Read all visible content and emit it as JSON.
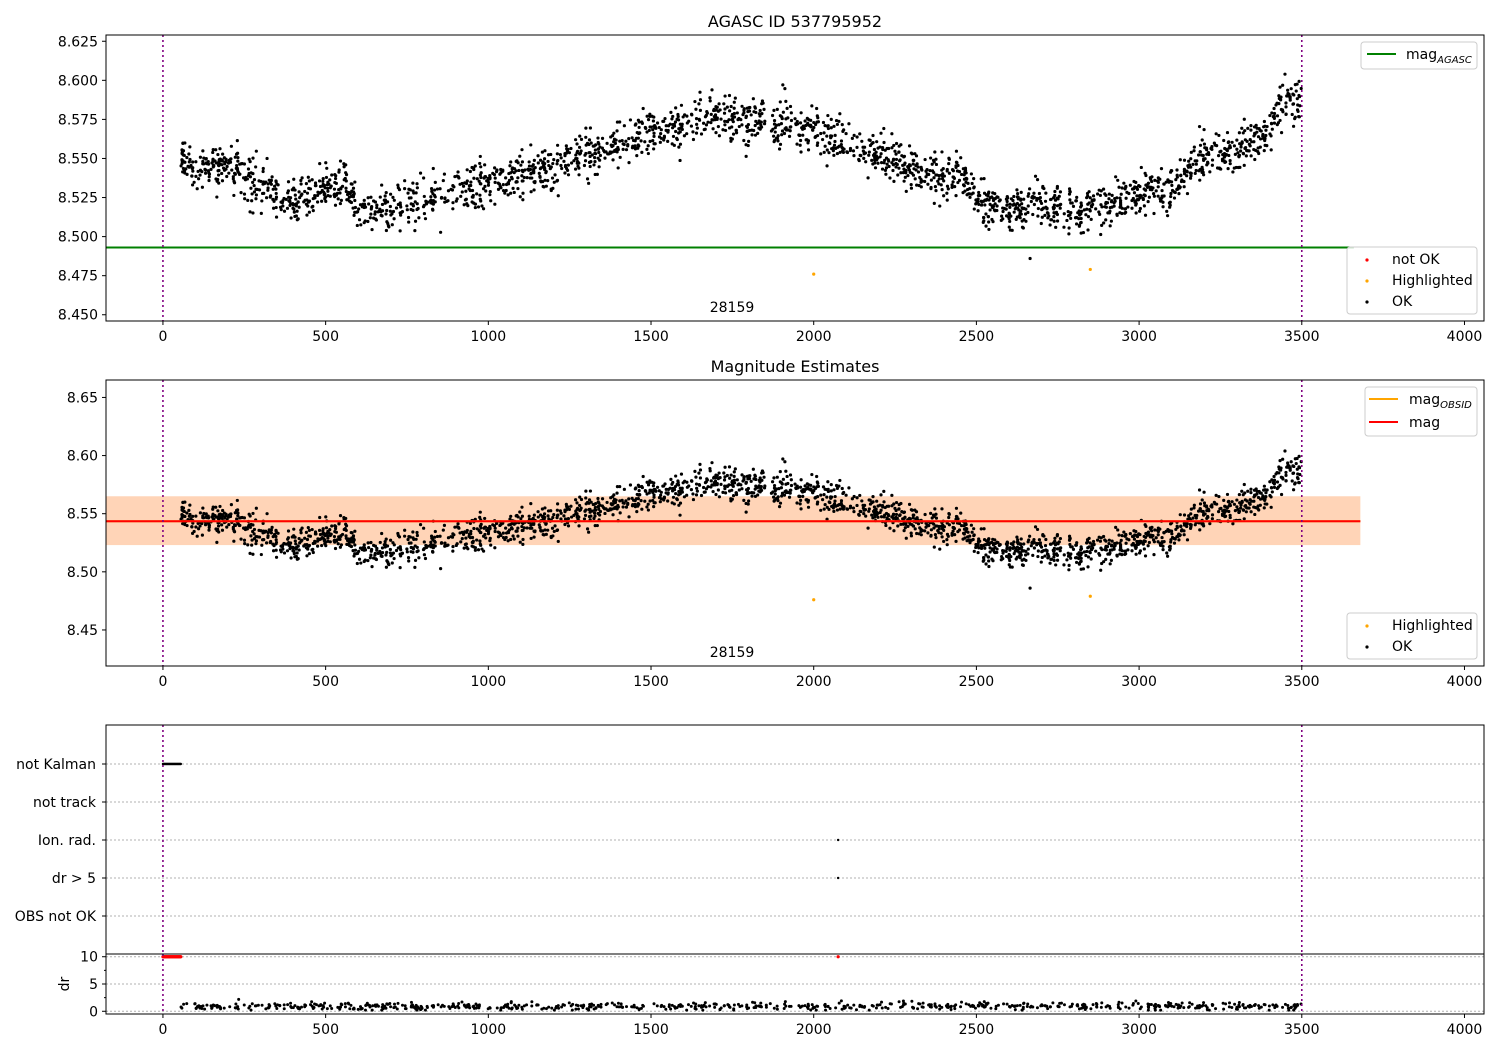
{
  "chart_data": [
    {
      "type": "scatter",
      "title": "AGASC ID 537795952",
      "xlim": [
        -175,
        4060
      ],
      "ylim": [
        8.446,
        8.629
      ],
      "xticks": [
        0,
        500,
        1000,
        1500,
        2000,
        2500,
        3000,
        3500,
        4000
      ],
      "yticks": [
        "8.450",
        "8.475",
        "8.500",
        "8.525",
        "8.550",
        "8.575",
        "8.600",
        "8.625"
      ],
      "vlines": [
        0,
        3500
      ],
      "vline_color": "#800080",
      "annotation": "28159",
      "hline": {
        "name": "mag",
        "subscript": "AGASC",
        "y": 8.493,
        "color": "#008000",
        "x_end": 3660
      },
      "legend_lines_position": "top-right",
      "legend_points_position": "lower-right",
      "points_legend": [
        {
          "name": "not OK",
          "color": "#ff0000"
        },
        {
          "name": "Highlighted",
          "color": "#ffa500"
        },
        {
          "name": "OK",
          "color": "#000000"
        }
      ],
      "ok_points": {
        "color": "#000000",
        "x_range": [
          55,
          3500
        ],
        "count": 2300,
        "trend": {
          "x": [
            55,
            100,
            200,
            300,
            400,
            500,
            550,
            600,
            700,
            800,
            900,
            1000,
            1100,
            1200,
            1300,
            1400,
            1500,
            1600,
            1700,
            1800,
            1900,
            2000,
            2100,
            2200,
            2300,
            2400,
            2450,
            2500,
            2600,
            2700,
            2800,
            2900,
            3000,
            3100,
            3200,
            3300,
            3400,
            3450,
            3500
          ],
          "y": [
            8.552,
            8.541,
            8.547,
            8.533,
            8.522,
            8.531,
            8.536,
            8.52,
            8.516,
            8.526,
            8.528,
            8.536,
            8.539,
            8.543,
            8.551,
            8.56,
            8.567,
            8.57,
            8.577,
            8.573,
            8.572,
            8.567,
            8.558,
            8.553,
            8.543,
            8.536,
            8.541,
            8.523,
            8.516,
            8.522,
            8.516,
            8.52,
            8.527,
            8.533,
            8.552,
            8.554,
            8.566,
            8.59,
            8.582
          ]
        },
        "scatter_sd": 0.007
      },
      "outliers": [
        {
          "x": 2665,
          "y": 8.486,
          "color": "#000000"
        },
        {
          "x": 2000,
          "y": 8.476,
          "color": "#ffa500"
        },
        {
          "x": 2850,
          "y": 8.479,
          "color": "#ffa500"
        }
      ]
    },
    {
      "type": "scatter",
      "title": "Magnitude Estimates",
      "xlim": [
        -175,
        4060
      ],
      "ylim": [
        8.419,
        8.665
      ],
      "xticks": [
        0,
        500,
        1000,
        1500,
        2000,
        2500,
        3000,
        3500,
        4000
      ],
      "yticks": [
        "8.45",
        "8.50",
        "8.55",
        "8.60",
        "8.65"
      ],
      "vlines": [
        0,
        3500
      ],
      "annotation": "28159",
      "lines_legend": [
        {
          "name": "mag",
          "subscript": "OBSID",
          "color": "#ffa500"
        },
        {
          "name": "mag",
          "subscript": "",
          "color": "#ff0000"
        }
      ],
      "legend_lines_position": "top-right",
      "legend_points_position": "lower-right",
      "points_legend": [
        {
          "name": "Highlighted",
          "color": "#ffa500"
        },
        {
          "name": "OK",
          "color": "#000000"
        }
      ],
      "mag_obsid": {
        "x": [
          -175,
          3680
        ],
        "y": 8.5435,
        "band": [
          8.523,
          8.565
        ]
      },
      "mag": {
        "x": [
          -175,
          3680
        ],
        "y": 8.5435,
        "band": [
          8.523,
          8.565
        ]
      }
    },
    {
      "type": "scatter",
      "title": "",
      "xlim": [
        -175,
        4060
      ],
      "vlines": [
        0,
        3500
      ],
      "flag_rows": [
        "not Kalman",
        "not track",
        "Ion. rad.",
        "dr > 5",
        "OBS not OK"
      ],
      "flag_points": [
        {
          "row": "not Kalman",
          "x_range": [
            0,
            55
          ],
          "count": 30
        },
        {
          "row": "Ion. rad.",
          "x": 2075
        },
        {
          "row": "dr > 5",
          "x": 2075
        }
      ]
    },
    {
      "type": "scatter",
      "title": "",
      "ylabel": "dr",
      "xlim": [
        -175,
        4060
      ],
      "ylim": [
        -0.5,
        10.5
      ],
      "xticks": [
        0,
        500,
        1000,
        1500,
        2000,
        2500,
        3000,
        3500,
        4000
      ],
      "yticks": [
        "0",
        "5",
        "10"
      ],
      "vlines": [
        0,
        3500
      ],
      "capped_points": {
        "color": "#ff0000",
        "y": 10,
        "x_range": [
          0,
          55
        ],
        "count": 30,
        "extra_x": [
          2075
        ]
      },
      "dr_points": {
        "color": "#000000",
        "x_range": [
          55,
          3500
        ],
        "count": 700,
        "y_range": [
          0.2,
          2.2
        ]
      }
    }
  ]
}
